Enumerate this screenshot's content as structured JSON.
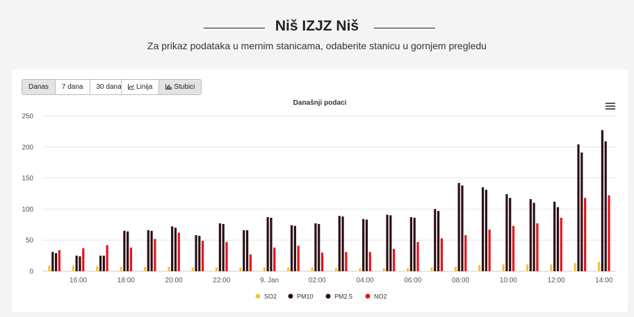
{
  "header": {
    "title": "Niš IZJZ Niš",
    "subtitle": "Za prikaz podataka u mernim stanicama, odaberite stanicu u gornjem pregledu"
  },
  "toolbar": {
    "range_buttons": [
      "Danas",
      "7 dana",
      "30 dana"
    ],
    "active_range": "Danas",
    "type_buttons": [
      {
        "label": "Linija",
        "icon": "line-chart-icon"
      },
      {
        "label": "Stubici",
        "icon": "bar-chart-icon"
      }
    ],
    "active_type": "Stubici"
  },
  "colors": {
    "SO2": "#f2c33b",
    "PM10": "#2b0f13",
    "PM2.5": "#2b0f13",
    "NO2": "#e8131c"
  },
  "chart_data": {
    "type": "bar",
    "title": "Današnji podaci",
    "ylim": [
      0,
      250
    ],
    "yticks": [
      0,
      50,
      100,
      150,
      200,
      250
    ],
    "categories": [
      "15:00",
      "16:00",
      "17:00",
      "18:00",
      "19:00",
      "20:00",
      "21:00",
      "22:00",
      "23:00",
      "00:00",
      "01:00",
      "02:00",
      "03:00",
      "04:00",
      "05:00",
      "06:00",
      "07:00",
      "08:00",
      "09:00",
      "10:00",
      "11:00",
      "12:00",
      "13:00",
      "14:00"
    ],
    "xticks": [
      {
        "index": 1,
        "label": "16:00"
      },
      {
        "index": 3,
        "label": "18:00"
      },
      {
        "index": 5,
        "label": "20:00"
      },
      {
        "index": 7,
        "label": "22:00"
      },
      {
        "index": 9,
        "label": "9. Jan"
      },
      {
        "index": 11,
        "label": "02:00"
      },
      {
        "index": 13,
        "label": "04:00"
      },
      {
        "index": 15,
        "label": "06:00"
      },
      {
        "index": 17,
        "label": "08:00"
      },
      {
        "index": 19,
        "label": "10:00"
      },
      {
        "index": 21,
        "label": "12:00"
      },
      {
        "index": 23,
        "label": "14:00"
      }
    ],
    "series": [
      {
        "name": "SO2",
        "values": [
          9,
          9,
          8,
          7,
          7,
          7,
          6,
          6,
          6,
          6,
          6,
          6,
          5,
          5,
          5,
          5,
          6,
          7,
          10,
          11,
          11,
          11,
          13,
          15
        ]
      },
      {
        "name": "PM10",
        "values": [
          31,
          25,
          25,
          65,
          66,
          72,
          58,
          77,
          66,
          87,
          74,
          77,
          89,
          84,
          91,
          87,
          100,
          142,
          135,
          124,
          116,
          112,
          204,
          227
        ]
      },
      {
        "name": "PM2.5",
        "values": [
          29,
          24,
          25,
          64,
          65,
          70,
          57,
          76,
          66,
          86,
          73,
          76,
          88,
          83,
          90,
          86,
          97,
          138,
          131,
          118,
          110,
          103,
          191,
          209
        ]
      },
      {
        "name": "NO2",
        "values": [
          34,
          37,
          42,
          38,
          52,
          62,
          49,
          47,
          27,
          38,
          41,
          30,
          31,
          31,
          36,
          47,
          53,
          58,
          67,
          73,
          77,
          86,
          118,
          122
        ]
      }
    ],
    "legend": [
      "SO2",
      "PM10",
      "PM2.5",
      "NO2"
    ],
    "legend_position": "bottom-center"
  }
}
